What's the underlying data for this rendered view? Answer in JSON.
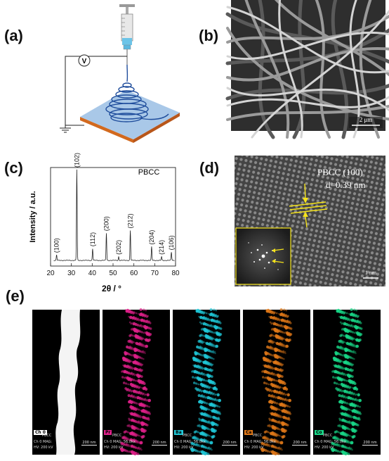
{
  "panels": {
    "a": {
      "label": "(a)",
      "voltage_symbol": "V"
    },
    "b": {
      "label": "(b)",
      "scale_bar": "2 μm"
    },
    "c": {
      "label": "(c)"
    },
    "d": {
      "label": "(d)",
      "annotation_line1": "PBCC (100)",
      "annotation_line2": "d=0.39 nm",
      "scale_bar": "1 nm"
    },
    "e": {
      "label": "(e)"
    }
  },
  "chart_data": {
    "type": "line",
    "title": "PBCC",
    "xlabel": "2θ / °",
    "ylabel": "Intensity / a.u.",
    "xlim": [
      20,
      80
    ],
    "xticks": [
      "20",
      "30",
      "40",
      "50",
      "60",
      "70",
      "80"
    ],
    "peaks": [
      {
        "label": "(100)",
        "x": 22.9,
        "y": 6
      },
      {
        "label": "(102)",
        "x": 32.6,
        "y": 100
      },
      {
        "label": "(112)",
        "x": 40.2,
        "y": 13
      },
      {
        "label": "(200)",
        "x": 46.8,
        "y": 30
      },
      {
        "label": "(202)",
        "x": 52.7,
        "y": 4
      },
      {
        "label": "(212)",
        "x": 58.3,
        "y": 33
      },
      {
        "label": "(204)",
        "x": 68.5,
        "y": 15
      },
      {
        "label": "(214)",
        "x": 73.3,
        "y": 4
      },
      {
        "label": "(106)",
        "x": 78.0,
        "y": 9
      }
    ]
  },
  "eds_maps": [
    {
      "tag": "Ch 0",
      "sub": "PBCC",
      "info1": "Ch 0    MAG:",
      "info2": "HV: 200 kV",
      "scale": "200 nm",
      "tag_color": "#ffffff",
      "color": "#ffffff"
    },
    {
      "tag": "Pr",
      "sub": "PBCC",
      "info1": "Ch 0    MAG: 56.0kx",
      "info2": "HV: 200 kV",
      "scale": "200 nm",
      "tag_color": "#e0208a",
      "color": "#e0208a"
    },
    {
      "tag": "Ba",
      "sub": "PBCC",
      "info1": "Ch 0    MAG: 56.0kx",
      "info2": "HV: 200 kV",
      "scale": "200 nm",
      "tag_color": "#1fc8d8",
      "color": "#1fc8d8"
    },
    {
      "tag": "Ca",
      "sub": "PBCC",
      "info1": "Ch 0    MAG: 56.0kx",
      "info2": "HV: 200 kV",
      "scale": "200 nm",
      "tag_color": "#e07818",
      "color": "#e07818"
    },
    {
      "tag": "Co",
      "sub": "PBCC",
      "info1": "Ch 0    MAG: 56.0kx",
      "info2": "HV: 200 kV",
      "scale": "200 nm",
      "tag_color": "#18d888",
      "color": "#18d888"
    }
  ]
}
